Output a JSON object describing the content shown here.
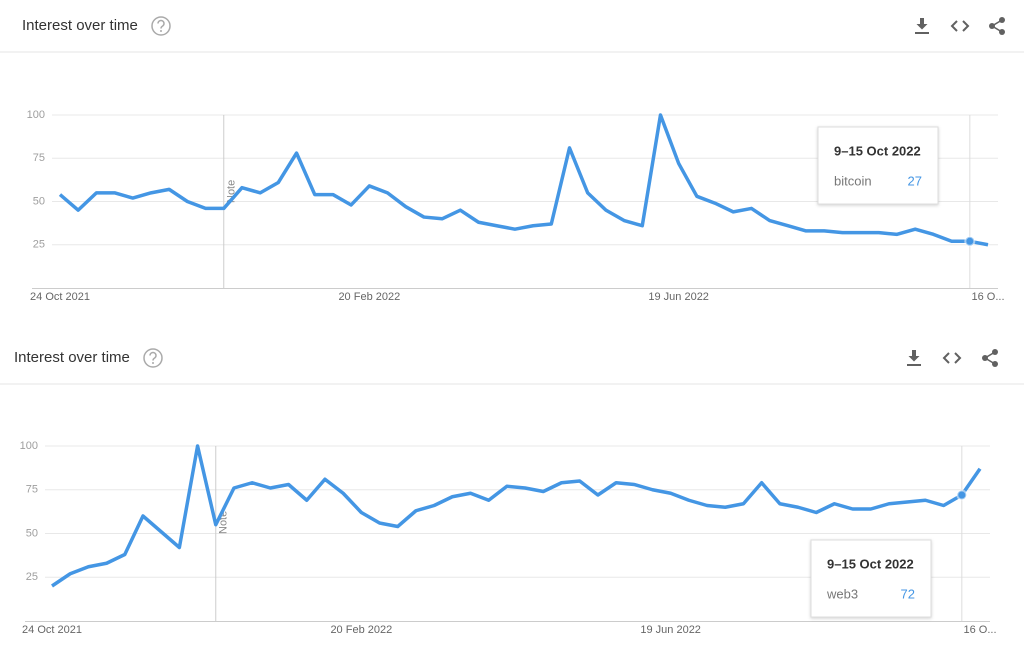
{
  "chart_data": [
    {
      "type": "line",
      "title": "Interest over time",
      "categories": [
        "24 Oct 2021",
        null,
        null,
        null,
        null,
        null,
        null,
        null,
        null,
        null,
        null,
        null,
        null,
        null,
        null,
        null,
        null,
        "20 Feb 2022",
        null,
        null,
        null,
        null,
        null,
        null,
        null,
        null,
        null,
        null,
        null,
        null,
        null,
        null,
        null,
        null,
        "19 Jun 2022",
        null,
        null,
        null,
        null,
        null,
        null,
        null,
        null,
        null,
        null,
        null,
        null,
        null,
        null,
        null,
        null,
        "16 O..."
      ],
      "series": [
        {
          "name": "bitcoin",
          "color": "#4496e4",
          "values": [
            54,
            45,
            55,
            55,
            52,
            55,
            57,
            50,
            46,
            46,
            58,
            55,
            61,
            78,
            54,
            54,
            48,
            59,
            55,
            47,
            41,
            40,
            45,
            38,
            36,
            34,
            36,
            37,
            81,
            55,
            45,
            39,
            36,
            100,
            72,
            53,
            49,
            44,
            46,
            39,
            36,
            33,
            33,
            32,
            32,
            32,
            31,
            34,
            31,
            27,
            27,
            25
          ]
        }
      ],
      "ylim": [
        0,
        100
      ],
      "yticks": [
        25,
        50,
        75,
        100
      ],
      "grid": true,
      "annotation": "Note",
      "tooltip": {
        "title": "9–15 Oct 2022",
        "index": 50
      }
    },
    {
      "type": "line",
      "title": "Interest over time",
      "categories": [
        "24 Oct 2021",
        null,
        null,
        null,
        null,
        null,
        null,
        null,
        null,
        null,
        null,
        null,
        null,
        null,
        null,
        null,
        null,
        "20 Feb 2022",
        null,
        null,
        null,
        null,
        null,
        null,
        null,
        null,
        null,
        null,
        null,
        null,
        null,
        null,
        null,
        null,
        "19 Jun 2022",
        null,
        null,
        null,
        null,
        null,
        null,
        null,
        null,
        null,
        null,
        null,
        null,
        null,
        null,
        null,
        null,
        "16 O..."
      ],
      "series": [
        {
          "name": "web3",
          "color": "#4496e4",
          "values": [
            20,
            27,
            31,
            33,
            38,
            60,
            51,
            42,
            100,
            55,
            76,
            79,
            76,
            78,
            69,
            81,
            73,
            62,
            56,
            54,
            63,
            66,
            71,
            73,
            69,
            77,
            76,
            74,
            79,
            80,
            72,
            79,
            78,
            75,
            73,
            69,
            66,
            65,
            67,
            79,
            67,
            65,
            62,
            67,
            64,
            64,
            67,
            68,
            69,
            66,
            72,
            87
          ]
        }
      ],
      "ylim": [
        0,
        100
      ],
      "yticks": [
        25,
        50,
        75,
        100
      ],
      "grid": true,
      "annotation": "Note",
      "tooltip": {
        "title": "9–15 Oct 2022",
        "index": 50
      }
    }
  ]
}
